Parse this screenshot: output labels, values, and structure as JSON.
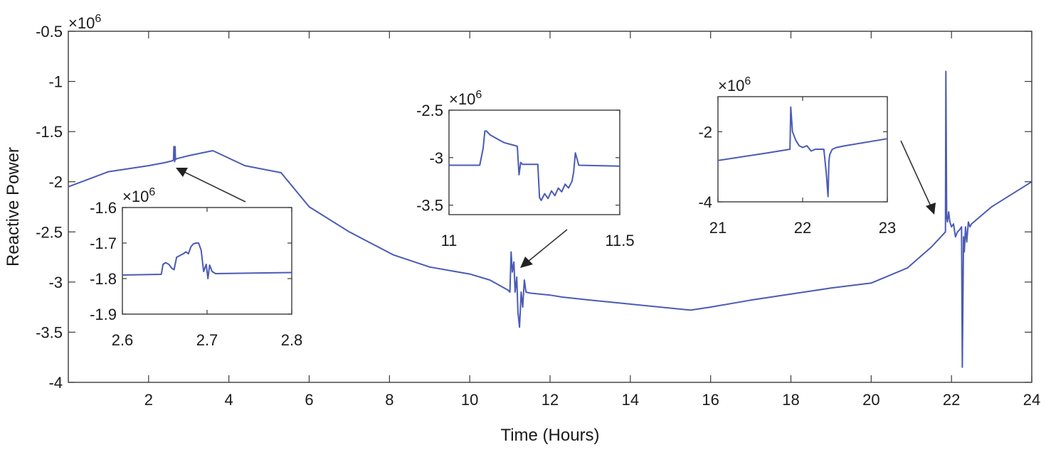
{
  "chart_data": [
    {
      "id": "main",
      "type": "line",
      "xlabel": "Time (Hours)",
      "ylabel": "Reactive Power",
      "exponent_label": "×10",
      "exponent_sup": "6",
      "xlim": [
        0,
        24
      ],
      "ylim": [
        -4,
        -0.5
      ],
      "xticks": [
        2,
        4,
        6,
        8,
        10,
        12,
        14,
        16,
        18,
        20,
        22,
        24
      ],
      "yticks": [
        -0.5,
        -1,
        -1.5,
        -2,
        -2.5,
        -3,
        -3.5,
        -4
      ],
      "grid": false,
      "series_color": "#4a5bb5",
      "series": [
        {
          "x": [
            0,
            1,
            2,
            2.4,
            2.6,
            2.62,
            2.63,
            2.65,
            2.66,
            2.67,
            2.7,
            3,
            3.6,
            4.4,
            5.3,
            6,
            7,
            8.1,
            9,
            10,
            10.5,
            10.95,
            11.0,
            11.03,
            11.06,
            11.1,
            11.13,
            11.17,
            11.2,
            11.24,
            11.28,
            11.32,
            11.36,
            11.4,
            11.5,
            12,
            12.3,
            13,
            14,
            15.5,
            16,
            17,
            18,
            19,
            20,
            20.9,
            21.5,
            21.85,
            21.86,
            21.88,
            21.9,
            21.93,
            21.96,
            22.0,
            22.05,
            22.1,
            22.15,
            22.2,
            22.25,
            22.27,
            22.3,
            22.32,
            22.35,
            22.38,
            22.42,
            22.46,
            22.5,
            23,
            24
          ],
          "y": [
            -2.05,
            -1.9,
            -1.84,
            -1.81,
            -1.79,
            -1.78,
            -1.65,
            -1.8,
            -1.65,
            -1.78,
            -1.77,
            -1.74,
            -1.69,
            -1.84,
            -1.91,
            -2.25,
            -2.5,
            -2.73,
            -2.85,
            -2.92,
            -2.98,
            -3.08,
            -3.1,
            -2.7,
            -2.9,
            -2.8,
            -3.1,
            -2.95,
            -3.3,
            -3.45,
            -3.1,
            -3.25,
            -2.98,
            -3.1,
            -3.11,
            -3.13,
            -3.15,
            -3.18,
            -3.22,
            -3.28,
            -3.25,
            -3.18,
            -3.12,
            -3.06,
            -3.01,
            -2.86,
            -2.65,
            -2.5,
            -0.9,
            -2.35,
            -2.4,
            -2.3,
            -2.4,
            -2.45,
            -2.42,
            -2.55,
            -2.5,
            -2.48,
            -2.45,
            -3.85,
            -2.55,
            -2.7,
            -2.45,
            -2.6,
            -2.4,
            -2.45,
            -2.42,
            -2.25,
            -2.0
          ]
        }
      ]
    },
    {
      "id": "inset1",
      "type": "line",
      "exponent_label": "×10",
      "exponent_sup": "6",
      "xlim": [
        2.6,
        2.8
      ],
      "ylim": [
        -1.9,
        -1.6
      ],
      "xticks": [
        2.6,
        2.7,
        2.8
      ],
      "yticks": [
        -1.6,
        -1.7,
        -1.8,
        -1.9
      ],
      "series": [
        {
          "x": [
            2.6,
            2.646,
            2.648,
            2.651,
            2.655,
            2.658,
            2.661,
            2.664,
            2.668,
            2.672,
            2.675,
            2.678,
            2.681,
            2.684,
            2.687,
            2.69,
            2.693,
            2.696,
            2.699,
            2.701,
            2.703,
            2.706,
            2.71,
            2.8
          ],
          "y": [
            -1.79,
            -1.788,
            -1.76,
            -1.755,
            -1.76,
            -1.77,
            -1.775,
            -1.74,
            -1.735,
            -1.73,
            -1.725,
            -1.73,
            -1.71,
            -1.702,
            -1.7,
            -1.7,
            -1.72,
            -1.78,
            -1.76,
            -1.8,
            -1.762,
            -1.78,
            -1.786,
            -1.783
          ]
        }
      ]
    },
    {
      "id": "inset2",
      "type": "line",
      "exponent_label": "×10",
      "exponent_sup": "6",
      "xlim": [
        11,
        11.5
      ],
      "ylim": [
        -3.6,
        -2.5
      ],
      "xticks": [
        11,
        11.5
      ],
      "yticks": [
        -2.5,
        -3,
        -3.5
      ],
      "series": [
        {
          "x": [
            11,
            11.09,
            11.1,
            11.105,
            11.11,
            11.12,
            11.13,
            11.14,
            11.15,
            11.16,
            11.17,
            11.18,
            11.19,
            11.2,
            11.205,
            11.21,
            11.215,
            11.26,
            11.265,
            11.27,
            11.28,
            11.29,
            11.3,
            11.31,
            11.32,
            11.33,
            11.34,
            11.35,
            11.36,
            11.365,
            11.37,
            11.38,
            11.5
          ],
          "y": [
            -3.08,
            -3.08,
            -2.9,
            -2.72,
            -2.72,
            -2.76,
            -2.78,
            -2.8,
            -2.82,
            -2.84,
            -2.85,
            -2.86,
            -2.87,
            -2.88,
            -3.18,
            -3.05,
            -3.07,
            -3.07,
            -3.42,
            -3.45,
            -3.38,
            -3.43,
            -3.35,
            -3.4,
            -3.32,
            -3.36,
            -3.28,
            -3.32,
            -3.25,
            -3.15,
            -2.95,
            -3.08,
            -3.09
          ]
        }
      ]
    },
    {
      "id": "inset3",
      "type": "line",
      "exponent_label": "×10",
      "exponent_sup": "6",
      "xlim": [
        21,
        23
      ],
      "ylim": [
        -4,
        -1
      ],
      "xticks": [
        21,
        22,
        23
      ],
      "yticks": [
        -2,
        -4
      ],
      "series": [
        {
          "x": [
            21,
            21.6,
            21.85,
            21.86,
            21.88,
            21.92,
            21.96,
            22.0,
            22.05,
            22.1,
            22.15,
            22.2,
            22.25,
            22.28,
            22.3,
            22.31,
            22.32,
            22.35,
            22.4,
            22.5,
            23.0
          ],
          "y": [
            -2.82,
            -2.6,
            -2.5,
            -1.3,
            -2.0,
            -2.25,
            -2.4,
            -2.45,
            -2.4,
            -2.55,
            -2.5,
            -2.5,
            -2.5,
            -3.2,
            -3.85,
            -2.85,
            -2.65,
            -2.5,
            -2.45,
            -2.4,
            -2.2
          ]
        }
      ]
    }
  ]
}
